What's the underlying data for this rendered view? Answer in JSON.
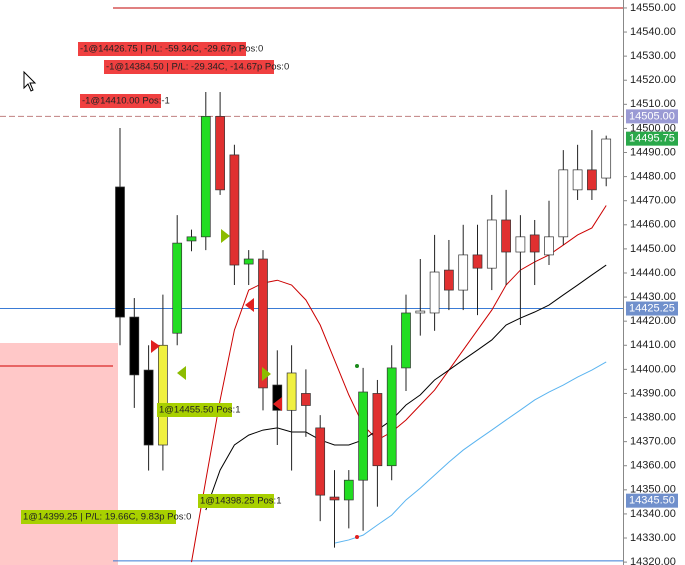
{
  "chart_data": {
    "type": "candlestick",
    "open": [
      14475.7,
      14421.7,
      14399.7,
      14368.6,
      14415,
      14453.3,
      14455,
      14505,
      14489,
      14443.7,
      14445.8,
      14393.5,
      14383,
      14390,
      14375.7,
      14347,
      14345.8,
      14354,
      14390,
      14360,
      14400.6,
      14423.4,
      14423.4,
      14441.2,
      14432.9,
      14447.5,
      14442,
      14462,
      14448.7,
      14455.8,
      14447.5,
      14455,
      14474.5,
      14482.8,
      14479.4
    ],
    "high": [
      14500.2,
      14429.6,
      14410,
      14431,
      14464,
      14458,
      14515.1,
      14515.1,
      14493.2,
      14449.5,
      14449.5,
      14407.9,
      14410,
      14400,
      14381,
      14358.2,
      14358.2,
      14400.6,
      14395.6,
      14410,
      14431,
      14445.8,
      14455.8,
      14453.7,
      14460,
      14460,
      14472.4,
      14474.5,
      14464,
      14462,
      14470,
      14491,
      14493.2,
      14499.3,
      14497
    ],
    "low": [
      14410,
      14384,
      14358,
      14358,
      14410,
      14449,
      14449.5,
      14472.4,
      14435,
      14435,
      14383,
      14368.6,
      14358,
      14372,
      14337,
      14326,
      14334,
      14333,
      14343,
      14354,
      14391,
      14414,
      14416,
      14424.6,
      14424.6,
      14422.5,
      14432.9,
      14435,
      14418.4,
      14435,
      14443.3,
      14451.6,
      14470.3,
      14470.3,
      14476
    ],
    "close": [
      14421.7,
      14397.7,
      14368.6,
      14410,
      14452.4,
      14455,
      14505,
      14474.5,
      14443.3,
      14445.8,
      14392.3,
      14383,
      14398.5,
      14385,
      14347.8,
      14345.8,
      14354,
      14390.6,
      14360,
      14400.6,
      14423.4,
      14424.2,
      14440.4,
      14432.9,
      14447.5,
      14442,
      14462,
      14448.7,
      14455,
      14448.7,
      14455,
      14482.8,
      14482.8,
      14474.5,
      14495.6
    ],
    "colors": [
      "#000000",
      "#000000",
      "#000000",
      "#f0f040",
      "#22dd22",
      "#22dd22",
      "#22dd22",
      "#e03030",
      "#e03030",
      "#22dd22",
      "#e03030",
      "#000000",
      "#f0f040",
      "#e03030",
      "#e03030",
      "#e03030",
      "#22dd22",
      "#22dd22",
      "#e03030",
      "#22dd22",
      "#22dd22",
      "#ffffff",
      "#ffffff",
      "#e03030",
      "#ffffff",
      "#e03030",
      "#ffffff",
      "#e03030",
      "#ffffff",
      "#e03030",
      "#ffffff",
      "#ffffff",
      "#ffffff",
      "#e03030",
      "#ffffff"
    ],
    "lines": [
      {
        "color": "#cc0000",
        "values": [
          null,
          null,
          null,
          null,
          null,
          14320.0,
          14354.0,
          14387.2,
          14416.3,
          14432.9,
          14435.8,
          14437.0,
          14435.0,
          14428.8,
          14418.4,
          14403.9,
          14389.4,
          14376.9,
          14370.7,
          14374.0,
          14379.0,
          14385.2,
          14391.4,
          14399.7,
          14408.0,
          14416.3,
          14424.6,
          14435.0,
          14441.2,
          14444.6,
          14447.5,
          14451.6,
          14455.8,
          14458.7,
          14468
        ]
      },
      {
        "color": "#000000",
        "values": [
          null,
          null,
          null,
          null,
          null,
          null,
          14341.6,
          14358.2,
          14368.6,
          14372.7,
          14374.8,
          14375.7,
          14374.0,
          14374.0,
          14370.7,
          14368.6,
          14368.6,
          14370.7,
          14374.8,
          14379.0,
          14385.2,
          14389.4,
          14395.6,
          14399.7,
          14403.9,
          14408.0,
          14412.2,
          14418.4,
          14421.3,
          14423.8,
          14426.7,
          14430.9,
          14435.0,
          14439.2,
          14443.3
        ]
      },
      {
        "color": "#5ab4f0",
        "values": [
          null,
          null,
          null,
          null,
          null,
          null,
          null,
          null,
          null,
          null,
          null,
          null,
          null,
          null,
          null,
          14327.9,
          14329.2,
          14331.2,
          14335.4,
          14339.5,
          14345.8,
          14350.7,
          14356.1,
          14361.5,
          14366.5,
          14370.7,
          14374.8,
          14379.0,
          14383.1,
          14387.3,
          14390.6,
          14393.5,
          14396.8,
          14399.7,
          14403.1
        ]
      }
    ],
    "levels": [
      {
        "value": 14550,
        "color": "#c00000"
      },
      {
        "value": 14505,
        "color": "#c08080",
        "dashed": true
      },
      {
        "value": 14425.25,
        "color": "#3a7bd5"
      },
      {
        "value": 14320.5,
        "color": "#3a7bd5"
      }
    ],
    "price_labels": [
      {
        "value": 14505,
        "label": "14505.00",
        "color": "#9a9ad4"
      },
      {
        "value": 14495.75,
        "label": "14495.75",
        "color": "#2aa84a"
      },
      {
        "value": 14425.25,
        "label": "14425.25",
        "color": "#7090cc"
      },
      {
        "value": 14345.5,
        "label": "14345.50",
        "color": "#7090cc"
      }
    ],
    "orders": [
      {
        "text": "-1@14426.75 | P/L: -59.34C, -29.67p Pos:0",
        "color": "#f04040"
      },
      {
        "text": "-1@14384.50 | P/L: -29.34C, -14.67p Pos:0",
        "color": "#f04040"
      },
      {
        "text": "-1@14410.00 Pos:-1",
        "color": "#f04040"
      },
      {
        "text": "1@14455.50 Pos:1",
        "color": "#a8d000"
      },
      {
        "text": "1@14398.25 Pos:1",
        "color": "#a8d000"
      },
      {
        "text": "1@14399.25 | P/L: 19.66C, 9.83p Pos:0",
        "color": "#a8d000"
      }
    ],
    "ylim": [
      14318.8,
      14553.3
    ],
    "yticks": [
      {
        "value": 14320,
        "label": "14320.00"
      },
      {
        "value": 14330,
        "label": "14330.00"
      },
      {
        "value": 14340,
        "label": "14340.00"
      },
      {
        "value": 14350,
        "label": "14350.00"
      },
      {
        "value": 14360,
        "label": "14360.00"
      },
      {
        "value": 14370,
        "label": "14370.00"
      },
      {
        "value": 14380,
        "label": "14380.00"
      },
      {
        "value": 14390,
        "label": "14390.00"
      },
      {
        "value": 14400,
        "label": "14400.00"
      },
      {
        "value": 14410,
        "label": "14410.00"
      },
      {
        "value": 14420,
        "label": "14420.00"
      },
      {
        "value": 14430,
        "label": "14430.00"
      },
      {
        "value": 14440,
        "label": "14440.00"
      },
      {
        "value": 14450,
        "label": "14450.00"
      },
      {
        "value": 14460,
        "label": "14460.00"
      },
      {
        "value": 14470,
        "label": "14470.00"
      },
      {
        "value": 14480,
        "label": "14480.00"
      },
      {
        "value": 14490,
        "label": "14490.00"
      },
      {
        "value": 14500,
        "label": "14500.00"
      },
      {
        "value": 14510,
        "label": "14510.00"
      },
      {
        "value": 14520,
        "label": "14520.00"
      },
      {
        "value": 14530,
        "label": "14530.00"
      },
      {
        "value": 14540,
        "label": "14540.00"
      },
      {
        "value": 14550,
        "label": "14550.00"
      }
    ]
  }
}
